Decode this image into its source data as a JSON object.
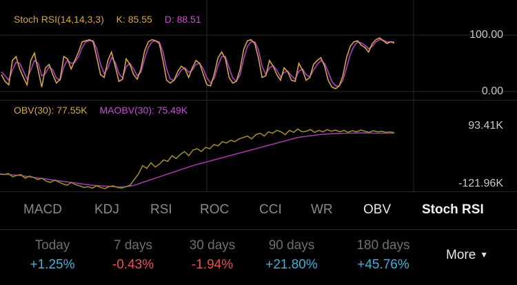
{
  "stoch": {
    "title": "Stoch RSI(14,14,3,3)",
    "k_label": "K: 85.55",
    "d_label": "D: 88.51",
    "axis_top": "100.00",
    "axis_bottom": "0.00",
    "colors": {
      "k": "#d7a64a",
      "d": "#b040c8"
    },
    "k_series": [
      30,
      18,
      12,
      55,
      62,
      40,
      25,
      12,
      55,
      68,
      38,
      8,
      42,
      48,
      30,
      15,
      22,
      62,
      58,
      40,
      55,
      70,
      88,
      90,
      92,
      88,
      60,
      30,
      25,
      55,
      70,
      45,
      18,
      22,
      58,
      48,
      30,
      22,
      40,
      72,
      88,
      92,
      90,
      85,
      55,
      20,
      15,
      20,
      35,
      45,
      40,
      25,
      42,
      55,
      50,
      30,
      12,
      10,
      32,
      60,
      70,
      58,
      25,
      15,
      18,
      40,
      75,
      90,
      92,
      85,
      60,
      25,
      28,
      55,
      45,
      30,
      20,
      42,
      35,
      20,
      18,
      50,
      38,
      20,
      25,
      48,
      55,
      60,
      45,
      20,
      8,
      5,
      10,
      28,
      60,
      80,
      88,
      90,
      82,
      78,
      70,
      85,
      92,
      95,
      90,
      85,
      88,
      86
    ],
    "d_series": [
      35,
      28,
      20,
      38,
      52,
      50,
      36,
      22,
      38,
      55,
      50,
      28,
      32,
      44,
      38,
      24,
      20,
      44,
      56,
      50,
      52,
      62,
      78,
      88,
      90,
      90,
      75,
      48,
      32,
      42,
      60,
      52,
      32,
      24,
      44,
      50,
      40,
      28,
      34,
      58,
      78,
      88,
      90,
      88,
      70,
      40,
      22,
      20,
      28,
      38,
      42,
      34,
      38,
      48,
      50,
      40,
      24,
      15,
      24,
      46,
      62,
      62,
      42,
      24,
      18,
      30,
      58,
      80,
      88,
      88,
      74,
      45,
      30,
      42,
      46,
      38,
      26,
      34,
      36,
      28,
      22,
      36,
      40,
      30,
      26,
      38,
      48,
      55,
      50,
      35,
      18,
      10,
      10,
      20,
      42,
      66,
      80,
      88,
      86,
      82,
      76,
      80,
      88,
      92,
      91,
      88,
      88,
      88
    ]
  },
  "obv": {
    "title": "OBV(30): 77.55K",
    "ma_title": "MAOBV(30): 75.49K",
    "axis_top": "93.41K",
    "axis_bottom": "-121.96K",
    "colors": {
      "obv": "#9a8a32",
      "ma": "#a03aa8"
    },
    "obv_series": [
      -70,
      -72,
      -68,
      -80,
      -75,
      -72,
      -85,
      -78,
      -82,
      -90,
      -85,
      -95,
      -100,
      -92,
      -98,
      -105,
      -110,
      -100,
      -108,
      -112,
      -118,
      -115,
      -120,
      -112,
      -118,
      -122,
      -115,
      -112,
      -118,
      -120,
      -115,
      -110,
      -90,
      -70,
      -40,
      -50,
      -30,
      -45,
      -35,
      -20,
      -25,
      -5,
      -15,
      0,
      10,
      -5,
      15,
      20,
      10,
      25,
      20,
      35,
      30,
      45,
      40,
      50,
      45,
      55,
      60,
      65,
      55,
      70,
      75,
      65,
      80,
      75,
      85,
      80,
      70,
      85,
      78,
      90,
      80,
      82,
      88,
      78,
      85,
      80,
      88,
      82,
      86,
      80,
      85,
      78,
      84,
      80,
      86,
      82,
      78,
      84,
      80,
      82,
      78,
      80,
      77
    ],
    "ma_series": [
      -70,
      -71,
      -72,
      -73,
      -74,
      -76,
      -78,
      -80,
      -82,
      -84,
      -86,
      -88,
      -90,
      -92,
      -94,
      -96,
      -98,
      -100,
      -102,
      -104,
      -106,
      -108,
      -110,
      -111,
      -112,
      -113,
      -114,
      -115,
      -116,
      -116,
      -115,
      -113,
      -110,
      -105,
      -100,
      -95,
      -90,
      -85,
      -80,
      -75,
      -70,
      -65,
      -60,
      -55,
      -50,
      -45,
      -40,
      -36,
      -32,
      -28,
      -24,
      -20,
      -16,
      -12,
      -8,
      -4,
      0,
      4,
      8,
      12,
      16,
      20,
      24,
      28,
      32,
      36,
      40,
      44,
      48,
      52,
      56,
      60,
      62,
      64,
      66,
      68,
      70,
      71,
      72,
      73,
      74,
      74,
      75,
      75,
      75,
      76,
      76,
      76,
      76,
      75,
      75,
      75,
      75,
      75,
      75
    ]
  },
  "tabs": [
    "MACD",
    "KDJ",
    "RSI",
    "ROC",
    "CCI",
    "WR",
    "OBV",
    "Stoch RSI"
  ],
  "periods": [
    {
      "label": "Today",
      "value": "+1.25%",
      "trend": "pos"
    },
    {
      "label": "7 days",
      "value": "-0.43%",
      "trend": "neg"
    },
    {
      "label": "30 days",
      "value": "-1.94%",
      "trend": "neg"
    },
    {
      "label": "90 days",
      "value": "+21.80%",
      "trend": "pos"
    },
    {
      "label": "180 days",
      "value": "+45.76%",
      "trend": "pos"
    }
  ],
  "more_label": "More"
}
